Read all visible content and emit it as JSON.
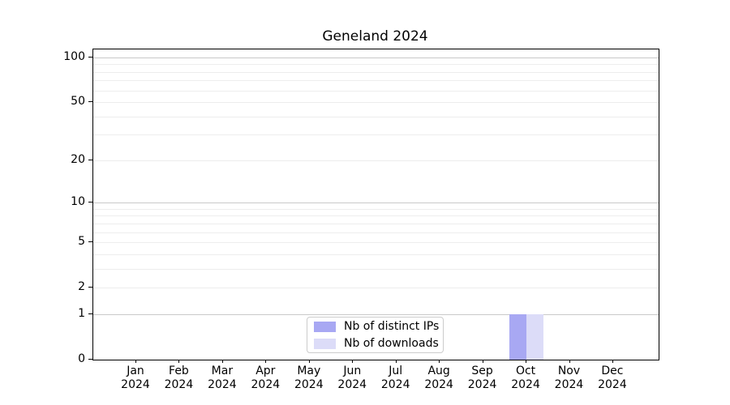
{
  "title": "Geneland 2024",
  "chart_data": {
    "type": "bar",
    "title": "Geneland 2024",
    "categories": [
      "Jan",
      "Feb",
      "Mar",
      "Apr",
      "May",
      "Jun",
      "Jul",
      "Aug",
      "Sep",
      "Oct",
      "Nov",
      "Dec"
    ],
    "category_year": "2024",
    "series": [
      {
        "name": "Nb of distinct IPs",
        "color": "#a8a8f3",
        "values": [
          0,
          0,
          0,
          0,
          0,
          0,
          0,
          0,
          0,
          1,
          0,
          0
        ]
      },
      {
        "name": "Nb of downloads",
        "color": "#dcdcf8",
        "values": [
          0,
          0,
          0,
          0,
          0,
          0,
          0,
          0,
          0,
          1,
          0,
          0
        ]
      }
    ],
    "xlabel": "",
    "ylabel": "",
    "y_axis": {
      "scale": "log1p",
      "tick_values": [
        0,
        1,
        2,
        5,
        10,
        20,
        50,
        100
      ],
      "tick_labels": [
        "0",
        "1",
        "2",
        "5",
        "10",
        "20",
        "50",
        "100"
      ],
      "range_max": 100
    },
    "grid": {
      "major_values": [
        1,
        10,
        100
      ],
      "minor_values": [
        2,
        3,
        4,
        5,
        6,
        7,
        8,
        9,
        20,
        30,
        40,
        50,
        60,
        70,
        80,
        90
      ],
      "visible": true
    },
    "legend": {
      "position": "bottom-center"
    }
  }
}
